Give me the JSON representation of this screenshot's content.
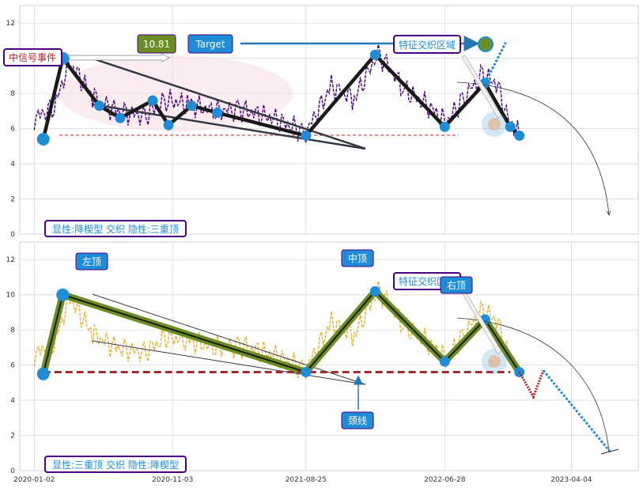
{
  "colors": {
    "panel_bg": "#ffffff",
    "grid": "#d9d9d9",
    "price_top": "#4b0082",
    "price_bottom": "#e9b030",
    "pattern_line": "#1a1a1a",
    "pattern_fill": "#6b8e23",
    "node": "#1f8dd6",
    "neckline": "#b22222",
    "label_blue": "#1f8dd6",
    "label_border": "#4b0082",
    "label_red_text": "#b22222",
    "value_box": "#6b8e23"
  },
  "chart_data": [
    {
      "type": "line",
      "panel": "top",
      "ylim": [
        0,
        13
      ],
      "yticks": [
        0,
        2,
        4,
        6,
        8,
        10,
        12
      ],
      "xlim": [
        "2019-12-01",
        "2023-08-30"
      ],
      "series": [
        {
          "kind": "price",
          "x": [
            "2020-01-02",
            "2020-02-15",
            "2020-03-20",
            "2020-05-10",
            "2020-07-01",
            "2020-09-01",
            "2020-10-20",
            "2020-12-10",
            "2021-02-01",
            "2021-04-01",
            "2021-06-10",
            "2021-08-25",
            "2021-10-20",
            "2021-12-10",
            "2022-02-01",
            "2022-04-01",
            "2022-06-01",
            "2022-07-01",
            "2022-08-15",
            "2022-09-20",
            "2022-10-20",
            "2022-11-20",
            "2022-12-10"
          ],
          "y": [
            6.6,
            7.2,
            9.8,
            7.8,
            7.0,
            6.7,
            7.6,
            7.4,
            7.0,
            7.1,
            6.6,
            5.8,
            8.4,
            7.7,
            10.3,
            8.2,
            7.1,
            6.3,
            8.0,
            9.0,
            8.6,
            6.3,
            5.6
          ]
        },
        {
          "kind": "pattern",
          "x": [
            "2020-01-22",
            "2020-03-05",
            "2020-05-25",
            "2020-07-10",
            "2020-09-20",
            "2020-10-25",
            "2020-12-15",
            "2021-02-10",
            "2021-08-25",
            "2022-01-25",
            "2022-06-28",
            "2022-09-25",
            "2022-11-20",
            "2022-12-10"
          ],
          "y": [
            5.4,
            10.0,
            7.3,
            6.6,
            7.6,
            6.2,
            7.3,
            6.9,
            5.6,
            10.2,
            6.1,
            8.6,
            6.1,
            5.6
          ]
        },
        {
          "kind": "projection",
          "x": [
            "2022-09-25",
            "2022-11-10"
          ],
          "y": [
            8.6,
            10.9
          ]
        }
      ],
      "annotations": {
        "event": "中信号事件",
        "value": "10.81",
        "target": "Target",
        "zone": "特征交织区域",
        "pattern_note": "显性:降楔型 交织 隐性:三重顶"
      }
    },
    {
      "type": "line",
      "panel": "bottom",
      "ylim": [
        0,
        13
      ],
      "yticks": [
        0,
        2,
        4,
        6,
        8,
        10,
        12
      ],
      "xlim": [
        "2019-12-01",
        "2023-08-30"
      ],
      "xticks": [
        "2020-01-02",
        "2020-11-03",
        "2021-08-25",
        "2022-06-28",
        "2023-04-04"
      ],
      "neckline": 5.6,
      "series": [
        {
          "kind": "price",
          "x": [
            "2020-01-02",
            "2020-02-15",
            "2020-03-20",
            "2020-05-10",
            "2020-07-01",
            "2020-09-01",
            "2020-10-20",
            "2020-12-10",
            "2021-02-01",
            "2021-04-01",
            "2021-06-10",
            "2021-08-25",
            "2021-10-20",
            "2021-12-10",
            "2022-02-01",
            "2022-04-01",
            "2022-06-01",
            "2022-07-01",
            "2022-08-15",
            "2022-09-20",
            "2022-10-20",
            "2022-11-20"
          ],
          "y": [
            6.6,
            7.2,
            9.8,
            7.8,
            7.0,
            6.7,
            7.6,
            7.4,
            7.0,
            7.1,
            6.6,
            5.8,
            8.4,
            7.7,
            10.3,
            8.2,
            7.1,
            6.3,
            8.0,
            9.0,
            8.6,
            6.3
          ]
        },
        {
          "kind": "pattern",
          "x": [
            "2020-01-22",
            "2020-03-05",
            "2021-08-25",
            "2022-01-25",
            "2022-06-28",
            "2022-09-25",
            "2022-12-10"
          ],
          "y": [
            5.5,
            10.0,
            5.6,
            10.2,
            6.2,
            8.6,
            5.6
          ]
        },
        {
          "kind": "projection",
          "x": [
            "2022-12-10",
            "2023-01-10",
            "2023-02-01",
            "2023-07-01"
          ],
          "y": [
            5.6,
            4.2,
            5.7,
            1.0
          ]
        }
      ],
      "annotations": {
        "left_top": "左顶",
        "mid_top": "中顶",
        "right_top": "右顶",
        "zone": "特征交织区域",
        "neckline": "颈线",
        "pattern_note": "显性:三重顶 交织 隐性:降楔型"
      }
    }
  ]
}
